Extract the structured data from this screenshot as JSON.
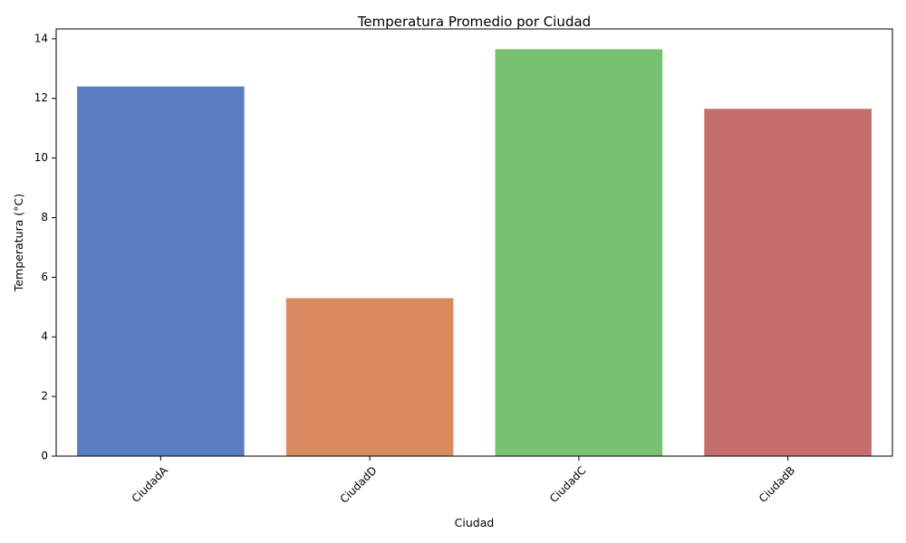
{
  "chart_data": {
    "type": "bar",
    "title": "Temperatura Promedio por Ciudad",
    "xlabel": "Ciudad",
    "ylabel": "Temperatura (°C)",
    "categories": [
      "CiudadA",
      "CiudadD",
      "CiudadC",
      "CiudadB"
    ],
    "values": [
      12.4,
      5.3,
      13.65,
      11.65
    ],
    "colors": [
      "#5b7ec2",
      "#d98b5f",
      "#78c272",
      "#c56e6d"
    ],
    "ylim": [
      0,
      14.33
    ],
    "yticks": [
      0,
      2,
      4,
      6,
      8,
      10,
      12,
      14
    ],
    "ytick_labels": [
      "0",
      "2",
      "4",
      "6",
      "8",
      "10",
      "12",
      "14"
    ],
    "grid": false,
    "legend": "none",
    "xtick_rotation": 45
  }
}
